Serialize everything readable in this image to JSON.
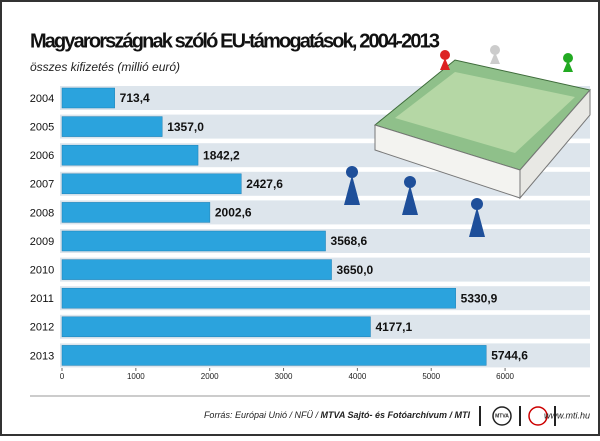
{
  "chart_data": {
    "type": "bar",
    "orientation": "horizontal",
    "title": "Magyarországnak szóló EU-támogatások, 2004-2013",
    "subtitle": "összes kifizetés (millió euró)",
    "categories": [
      "2004",
      "2005",
      "2006",
      "2007",
      "2008",
      "2009",
      "2010",
      "2011",
      "2012",
      "2013"
    ],
    "values": [
      713.4,
      1357.0,
      1842.2,
      2427.6,
      2002.6,
      3568.6,
      3650.0,
      5330.9,
      4177.1,
      5744.6
    ],
    "value_labels": [
      "713,4",
      "1357,0",
      "1842,2",
      "2427,6",
      "2002,6",
      "3568,6",
      "3650,0",
      "5330,9",
      "4177,1",
      "5744,6"
    ],
    "color": "#2ba3dd",
    "xlim": [
      0,
      7150
    ],
    "xticks": [
      0,
      1000,
      2000,
      3000,
      4000,
      5000,
      6000
    ],
    "grid": false
  },
  "footer": {
    "source": "Forrás: Európai Unió / NFÜ / ",
    "source_bold": "MTVA Sajtó- és Fotóarchívum / MTI",
    "logo_text": "MTVA",
    "website": "www.mti.hu"
  }
}
